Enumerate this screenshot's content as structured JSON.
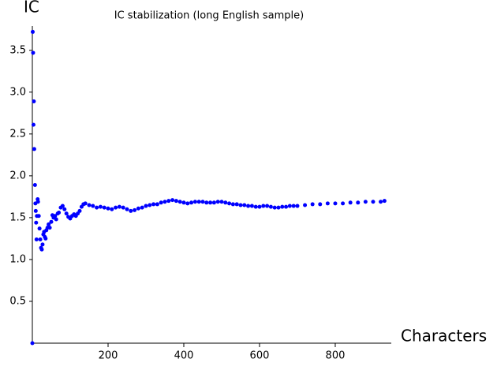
{
  "chart_data": {
    "type": "scatter",
    "title": "IC stabilization (long English sample)",
    "x_label": "Characters",
    "y_label": "IC",
    "color": "#0000ff",
    "xlim": [
      0,
      948
    ],
    "ylim": [
      0,
      3.79
    ],
    "xticks": [
      200,
      400,
      600,
      800
    ],
    "yticks": [
      0.5,
      {
        "value": 1,
        "label": "1.0"
      },
      1.5,
      {
        "value": 2,
        "label": "2.0"
      },
      2.5,
      {
        "value": 3,
        "label": "3.0"
      },
      3.5
    ],
    "x": [
      0,
      1,
      2,
      3,
      4,
      5,
      7,
      8,
      9,
      10,
      11,
      12,
      14,
      15,
      17,
      19,
      21,
      23,
      25,
      27,
      29,
      31,
      33,
      35,
      37,
      40,
      43,
      46,
      50,
      53,
      56,
      60,
      63,
      67,
      70,
      75,
      80,
      85,
      90,
      95,
      100,
      105,
      110,
      115,
      120,
      125,
      130,
      135,
      140,
      150,
      160,
      170,
      180,
      190,
      200,
      210,
      220,
      230,
      240,
      250,
      260,
      270,
      280,
      290,
      300,
      310,
      320,
      330,
      340,
      350,
      360,
      370,
      380,
      390,
      400,
      410,
      420,
      430,
      440,
      450,
      460,
      470,
      480,
      490,
      500,
      510,
      520,
      530,
      540,
      550,
      560,
      570,
      580,
      590,
      600,
      610,
      620,
      630,
      640,
      650,
      660,
      670,
      680,
      690,
      700,
      720,
      740,
      760,
      780,
      800,
      820,
      840,
      860,
      880,
      900,
      920,
      930
    ],
    "values": [
      0,
      3.72,
      3.47,
      2.61,
      2.89,
      2.32,
      1.89,
      1.67,
      1.58,
      1.44,
      1.24,
      1.52,
      1.72,
      1.69,
      1.52,
      1.37,
      1.24,
      1.14,
      1.12,
      1.18,
      1.3,
      1.33,
      1.27,
      1.25,
      1.35,
      1.38,
      1.42,
      1.38,
      1.45,
      1.53,
      1.5,
      1.52,
      1.48,
      1.55,
      1.56,
      1.62,
      1.64,
      1.6,
      1.55,
      1.51,
      1.49,
      1.52,
      1.54,
      1.52,
      1.55,
      1.58,
      1.63,
      1.66,
      1.67,
      1.65,
      1.64,
      1.62,
      1.63,
      1.62,
      1.61,
      1.6,
      1.62,
      1.63,
      1.62,
      1.6,
      1.58,
      1.59,
      1.61,
      1.62,
      1.64,
      1.65,
      1.66,
      1.66,
      1.68,
      1.69,
      1.7,
      1.71,
      1.7,
      1.69,
      1.68,
      1.67,
      1.68,
      1.69,
      1.69,
      1.69,
      1.68,
      1.68,
      1.68,
      1.69,
      1.69,
      1.68,
      1.67,
      1.66,
      1.66,
      1.65,
      1.65,
      1.64,
      1.64,
      1.63,
      1.63,
      1.64,
      1.64,
      1.63,
      1.62,
      1.62,
      1.63,
      1.63,
      1.64,
      1.64,
      1.64,
      1.65,
      1.66,
      1.66,
      1.67,
      1.67,
      1.67,
      1.68,
      1.68,
      1.69,
      1.69,
      1.69,
      1.7
    ]
  }
}
